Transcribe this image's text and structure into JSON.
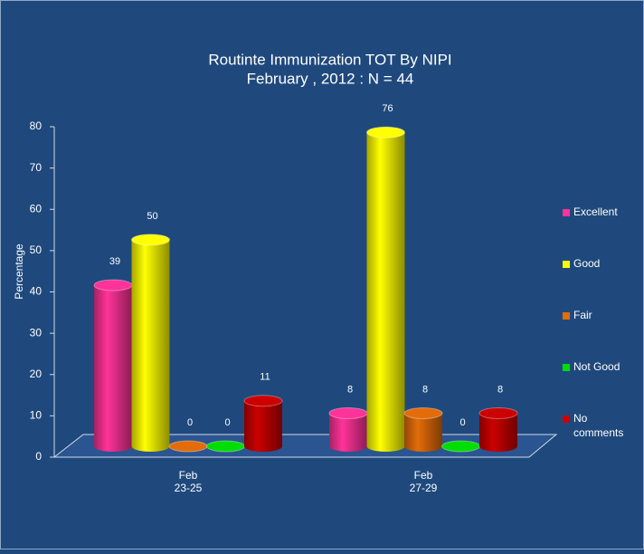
{
  "chart_data": {
    "type": "bar3d",
    "title": "Routinte Immunization TOT By NIPI",
    "subtitle": "February , 2012 : N = 44",
    "y_label": "Percentage",
    "categories": [
      "Feb\n23-25",
      "Feb\n27-29"
    ],
    "series": [
      {
        "name": "Excellent",
        "color": "#ff3399",
        "values": [
          39,
          8
        ]
      },
      {
        "name": "Good",
        "color": "#ffff00",
        "values": [
          50,
          76
        ]
      },
      {
        "name": "Fair",
        "color": "#e36c09",
        "values": [
          0,
          8
        ]
      },
      {
        "name": "Not Good",
        "color": "#00dd00",
        "values": [
          0,
          0
        ]
      },
      {
        "name": "No comments",
        "color": "#cc0000",
        "values": [
          11,
          8
        ]
      }
    ],
    "ylim": [
      0,
      80
    ],
    "yticks": [
      0,
      10,
      20,
      30,
      40,
      50,
      60,
      70,
      80
    ],
    "legend": "right"
  }
}
